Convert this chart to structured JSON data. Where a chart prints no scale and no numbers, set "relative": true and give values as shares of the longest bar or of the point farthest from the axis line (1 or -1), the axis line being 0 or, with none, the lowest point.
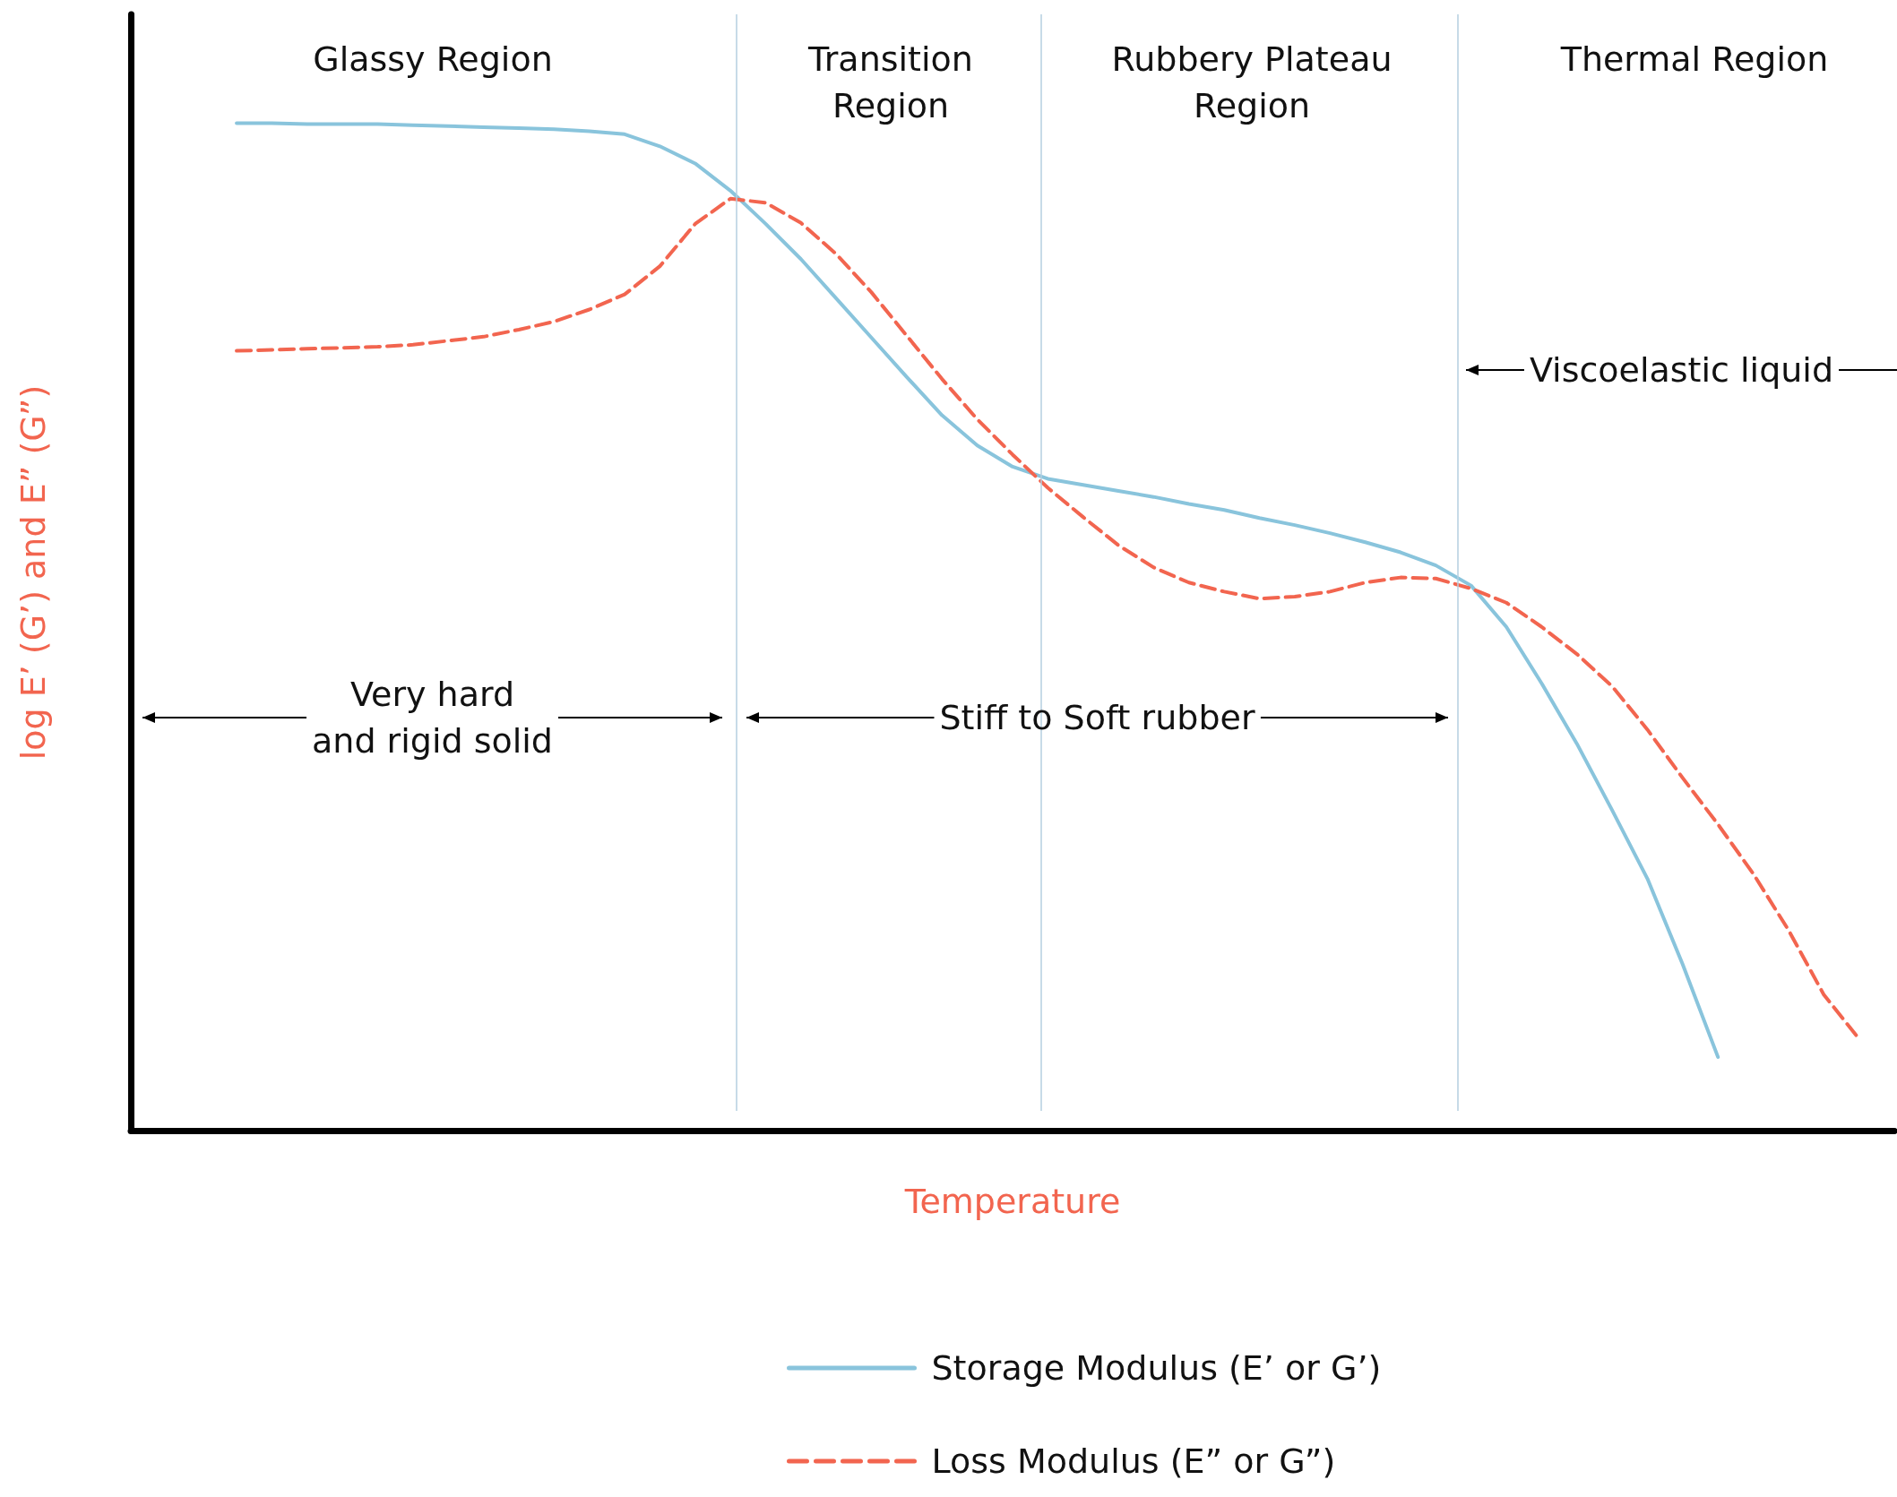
{
  "chart_data": {
    "type": "line",
    "relative": true,
    "xlabel": "Temperature",
    "ylabel": "log E’ (G’) and E” (G”)",
    "legend": "bottom",
    "marker": "none",
    "categories": [
      null,
      null,
      null,
      null,
      null,
      null,
      null,
      null,
      null,
      null,
      null,
      null,
      null,
      null,
      null,
      null,
      null,
      null,
      null,
      null,
      null,
      null,
      null,
      null,
      null,
      null,
      null,
      null,
      null,
      null,
      null,
      null,
      null,
      null,
      null,
      null,
      null,
      null,
      null,
      null,
      null,
      null,
      null,
      null,
      null,
      null,
      null,
      null,
      null,
      null,
      null
    ],
    "series": [
      {
        "name": "Storage Modulus (E’ or G’)",
        "color": "#89c4dc",
        "line_style": "solid",
        "values": [
          null,
          null,
          null,
          1.0,
          1.0,
          0.999,
          0.999,
          0.999,
          0.998,
          0.997,
          0.996,
          0.995,
          0.994,
          0.992,
          0.989,
          0.977,
          0.96,
          0.933,
          0.9,
          0.865,
          0.826,
          0.787,
          0.748,
          0.71,
          0.68,
          0.659,
          0.647,
          0.641,
          0.635,
          0.629,
          0.622,
          0.616,
          0.608,
          0.601,
          0.593,
          0.584,
          0.574,
          0.561,
          0.541,
          0.5,
          0.444,
          0.384,
          0.318,
          0.25,
          0.165,
          0.073,
          null,
          null,
          null,
          null,
          null
        ]
      },
      {
        "name": "Loss Modulus (E” or G”)",
        "color": "#f2654f",
        "line_style": "dashed",
        "values": [
          null,
          null,
          null,
          0.774,
          0.775,
          0.776,
          0.777,
          0.778,
          0.78,
          0.784,
          0.788,
          0.795,
          0.803,
          0.815,
          0.83,
          0.858,
          0.9,
          0.925,
          0.921,
          0.901,
          0.87,
          0.832,
          0.789,
          0.746,
          0.706,
          0.671,
          0.638,
          0.609,
          0.581,
          0.559,
          0.544,
          0.535,
          0.528,
          0.53,
          0.535,
          0.544,
          0.549,
          0.548,
          0.538,
          0.524,
          0.5,
          0.473,
          0.441,
          0.398,
          0.35,
          0.304,
          0.255,
          0.199,
          0.135,
          0.091,
          null
        ]
      }
    ],
    "annotations": [
      "Glassy Region",
      "Transition\nRegion",
      "Rubbery Plateau\nRegion",
      "Thermal Region",
      "Very hard\nand rigid solid",
      "Stiff to Soft rubber",
      "Viscoelastic liquid"
    ]
  }
}
